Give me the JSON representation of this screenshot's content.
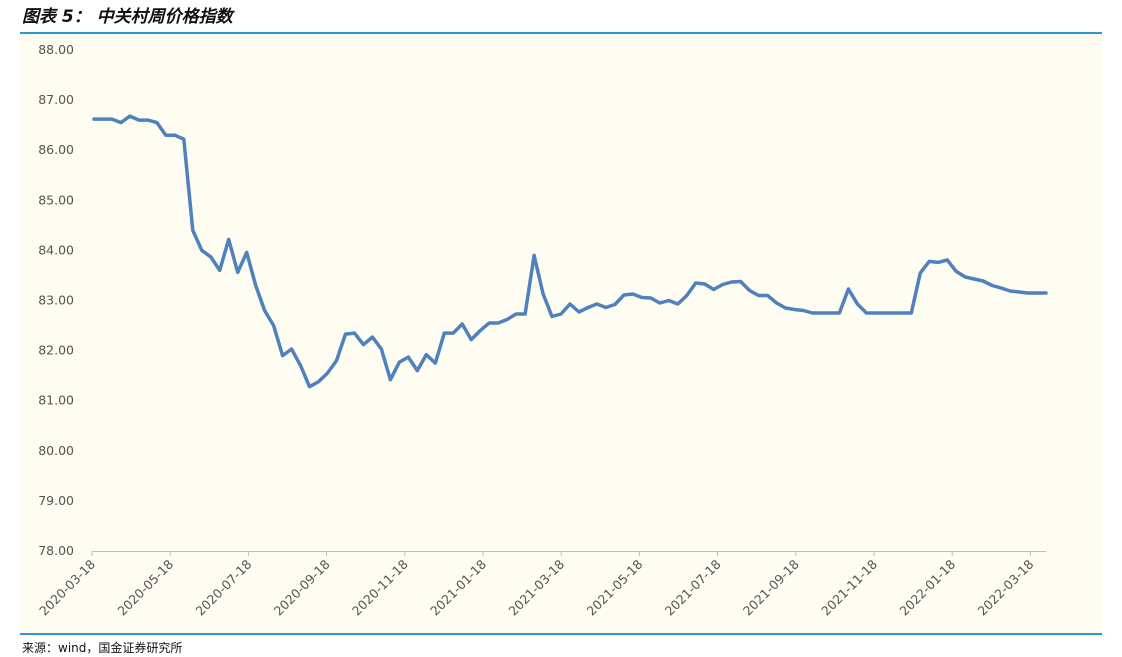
{
  "header": {
    "title": "图表 5： 中关村周价格指数"
  },
  "footer": {
    "source": "来源：wind，国金证券研究所"
  },
  "colors": {
    "line": "#4f81bd",
    "rule": "#2f97d1",
    "plot_background": "#fffcf1",
    "axis": "#bfbfbf"
  },
  "chart_data": {
    "type": "line",
    "title": "",
    "xlabel": "",
    "ylabel": "",
    "ylim": [
      78,
      88
    ],
    "yticks": [
      "78.00",
      "79.00",
      "80.00",
      "81.00",
      "82.00",
      "83.00",
      "84.00",
      "85.00",
      "86.00",
      "87.00",
      "88.00"
    ],
    "xticks": [
      "2020-03-18",
      "2020-05-18",
      "2020-07-18",
      "2020-09-18",
      "2020-11-18",
      "2021-01-18",
      "2021-03-18",
      "2021-05-18",
      "2021-07-18",
      "2021-09-18",
      "2021-11-18",
      "2022-01-18",
      "2022-03-18"
    ],
    "grid": false,
    "legend": "none",
    "series": [
      {
        "values": [
          86.62,
          86.62,
          86.62,
          86.55,
          86.68,
          86.6,
          86.6,
          86.55,
          86.3,
          86.3,
          86.22,
          84.4,
          84.0,
          83.87,
          83.6,
          84.22,
          83.56,
          83.96,
          83.3,
          82.8,
          82.5,
          81.9,
          82.03,
          81.7,
          81.28,
          81.38,
          81.55,
          81.8,
          82.33,
          82.35,
          82.12,
          82.27,
          82.03,
          81.42,
          81.77,
          81.87,
          81.6,
          81.92,
          81.75,
          82.35,
          82.35,
          82.53,
          82.22,
          82.4,
          82.55,
          82.55,
          82.62,
          82.73,
          82.73,
          83.9,
          83.13,
          82.68,
          82.73,
          82.93,
          82.77,
          82.86,
          82.93,
          82.86,
          82.92,
          83.11,
          83.13,
          83.06,
          83.05,
          82.95,
          83.0,
          82.93,
          83.1,
          83.35,
          83.33,
          83.22,
          83.32,
          83.37,
          83.38,
          83.2,
          83.1,
          83.1,
          82.95,
          82.85,
          82.82,
          82.8,
          82.75,
          82.75,
          82.75,
          82.75,
          83.23,
          82.93,
          82.75,
          82.75,
          82.75,
          82.75,
          82.75,
          82.75,
          83.55,
          83.78,
          83.76,
          83.81,
          83.58,
          83.47,
          83.43,
          83.39,
          83.3,
          83.25,
          83.19,
          83.17,
          83.15,
          83.15,
          83.15
        ]
      }
    ]
  }
}
